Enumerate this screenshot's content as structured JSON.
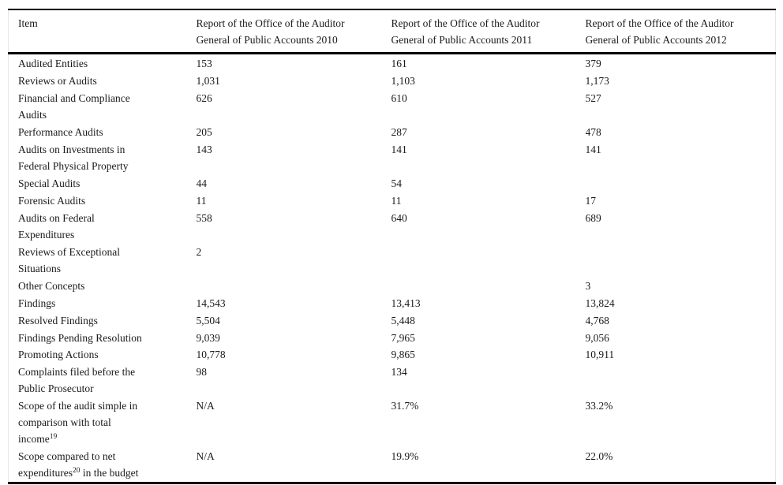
{
  "page": {
    "background": "#ffffff",
    "text_color": "#1a1a1a",
    "rule_color": "#000000"
  },
  "table": {
    "columns": [
      {
        "id": "item",
        "lines": [
          "Item"
        ]
      },
      {
        "id": "report_2010",
        "lines": [
          "Report of the Office of the Auditor",
          "General of Public Accounts 2010"
        ]
      },
      {
        "id": "report_2011",
        "lines": [
          "Report of the Office of the Auditor",
          "General of Public Accounts 2011"
        ]
      },
      {
        "id": "report_2012",
        "lines": [
          "Report of the Office of the Auditor",
          "General of Public Accounts 2012"
        ]
      }
    ],
    "rows": [
      {
        "item_lines": [
          "Audited Entities"
        ],
        "values": [
          "153",
          "161",
          "379"
        ]
      },
      {
        "item_lines": [
          "Reviews or Audits"
        ],
        "values": [
          "1,031",
          "1,103",
          "1,173"
        ]
      },
      {
        "item_lines": [
          "Financial and Compliance",
          "Audits"
        ],
        "values": [
          "626",
          "610",
          "527"
        ]
      },
      {
        "item_lines": [
          "Performance Audits"
        ],
        "values": [
          "205",
          "287",
          "478"
        ]
      },
      {
        "item_lines": [
          "Audits on Investments in",
          "Federal Physical Property"
        ],
        "values": [
          "143",
          "141",
          "141"
        ]
      },
      {
        "item_lines": [
          "Special Audits"
        ],
        "values": [
          "44",
          "54",
          ""
        ]
      },
      {
        "item_lines": [
          "Forensic Audits"
        ],
        "values": [
          "11",
          "11",
          "17"
        ]
      },
      {
        "item_lines": [
          "Audits on Federal",
          "Expenditures"
        ],
        "values": [
          "558",
          "640",
          "689"
        ]
      },
      {
        "item_lines": [
          "Reviews of Exceptional",
          "Situations"
        ],
        "values": [
          "2",
          "",
          ""
        ]
      },
      {
        "item_lines": [
          "Other Concepts"
        ],
        "values": [
          "",
          "",
          "3"
        ]
      },
      {
        "item_lines": [
          "Findings"
        ],
        "values": [
          "14,543",
          "13,413",
          "13,824"
        ]
      },
      {
        "item_lines": [
          "Resolved Findings"
        ],
        "values": [
          "5,504",
          "5,448",
          "4,768"
        ]
      },
      {
        "item_lines": [
          "Findings Pending Resolution"
        ],
        "values": [
          "9,039",
          "7,965",
          "9,056"
        ]
      },
      {
        "item_lines": [
          "Promoting Actions"
        ],
        "values": [
          "10,778",
          "9,865",
          "10,911"
        ]
      },
      {
        "item_lines": [
          "Complaints filed before the",
          "Public Prosecutor"
        ],
        "values": [
          "98",
          "134",
          ""
        ]
      },
      {
        "item_lines": [
          "Scope of the audit simple in",
          "comparison with total",
          "income{19}"
        ],
        "values": [
          "N/A",
          "31.7%",
          "33.2%"
        ]
      },
      {
        "item_lines": [
          "Scope compared to net",
          "expenditures{20} in the budget"
        ],
        "values": [
          "N/A",
          "19.9%",
          "22.0%"
        ]
      }
    ],
    "footnote_refs": [
      "19",
      "20"
    ]
  }
}
